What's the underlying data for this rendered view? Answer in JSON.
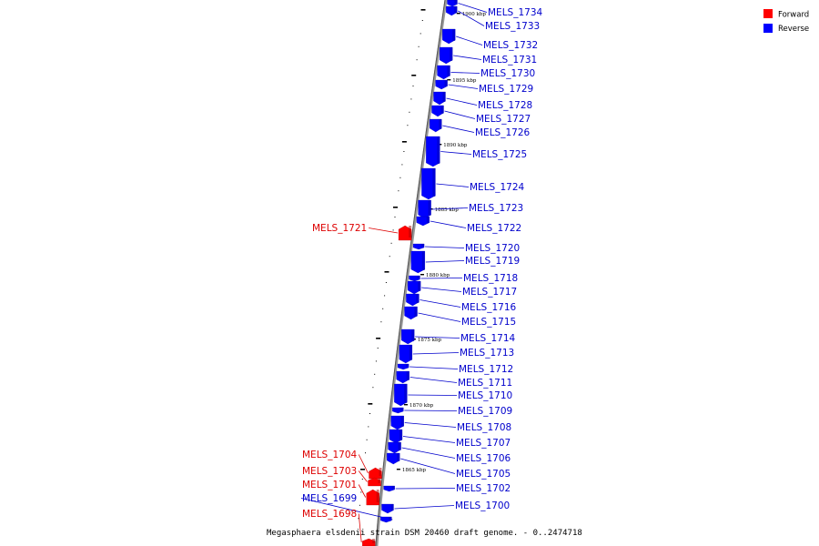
{
  "colors": {
    "forward": "#ff0000",
    "reverse": "#0000ff",
    "forward_text": "#dd0000",
    "reverse_text": "#0000cc",
    "backbone": "#999999"
  },
  "legend": [
    {
      "label": "Forward",
      "strand": "forward"
    },
    {
      "label": "Reverse",
      "strand": "reverse"
    }
  ],
  "caption": "Megasphaera elsdenii strain DSM 20460 draft genome. - 0..2474718",
  "kbp_ticks": [
    "1900 kbp",
    "1895 kbp",
    "1890 kbp",
    "1885 kbp",
    "1880 kbp",
    "1875 kbp",
    "1870 kbp",
    "1865 kbp"
  ],
  "genes": [
    {
      "name": "MELS_1734",
      "strand": "reverse"
    },
    {
      "name": "MELS_1733",
      "strand": "reverse"
    },
    {
      "name": "MELS_1732",
      "strand": "reverse"
    },
    {
      "name": "MELS_1731",
      "strand": "reverse"
    },
    {
      "name": "MELS_1730",
      "strand": "reverse"
    },
    {
      "name": "MELS_1729",
      "strand": "reverse"
    },
    {
      "name": "MELS_1728",
      "strand": "reverse"
    },
    {
      "name": "MELS_1727",
      "strand": "reverse"
    },
    {
      "name": "MELS_1726",
      "strand": "reverse"
    },
    {
      "name": "MELS_1725",
      "strand": "reverse"
    },
    {
      "name": "MELS_1724",
      "strand": "reverse"
    },
    {
      "name": "MELS_1723",
      "strand": "reverse"
    },
    {
      "name": "MELS_1722",
      "strand": "reverse"
    },
    {
      "name": "MELS_1721",
      "strand": "forward"
    },
    {
      "name": "MELS_1720",
      "strand": "reverse"
    },
    {
      "name": "MELS_1719",
      "strand": "reverse"
    },
    {
      "name": "MELS_1718",
      "strand": "reverse"
    },
    {
      "name": "MELS_1717",
      "strand": "reverse"
    },
    {
      "name": "MELS_1716",
      "strand": "reverse"
    },
    {
      "name": "MELS_1715",
      "strand": "reverse"
    },
    {
      "name": "MELS_1714",
      "strand": "reverse"
    },
    {
      "name": "MELS_1713",
      "strand": "reverse"
    },
    {
      "name": "MELS_1712",
      "strand": "reverse"
    },
    {
      "name": "MELS_1711",
      "strand": "reverse"
    },
    {
      "name": "MELS_1710",
      "strand": "reverse"
    },
    {
      "name": "MELS_1709",
      "strand": "reverse"
    },
    {
      "name": "MELS_1708",
      "strand": "reverse"
    },
    {
      "name": "MELS_1707",
      "strand": "reverse"
    },
    {
      "name": "MELS_1706",
      "strand": "reverse"
    },
    {
      "name": "MELS_1705",
      "strand": "reverse"
    },
    {
      "name": "MELS_1704",
      "strand": "forward"
    },
    {
      "name": "MELS_1703",
      "strand": "forward"
    },
    {
      "name": "MELS_1702",
      "strand": "reverse"
    },
    {
      "name": "MELS_1701",
      "strand": "forward"
    },
    {
      "name": "MELS_1700",
      "strand": "reverse"
    },
    {
      "name": "MELS_1699",
      "strand": "reverse"
    },
    {
      "name": "MELS_1698",
      "strand": "forward"
    }
  ]
}
